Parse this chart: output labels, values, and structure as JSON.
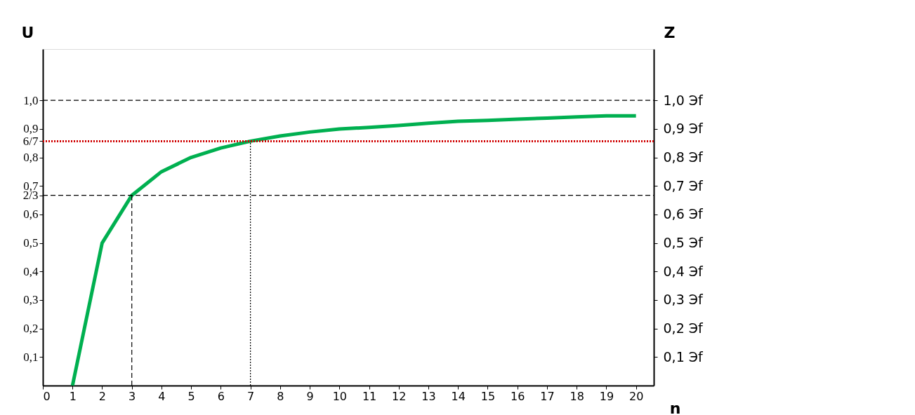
{
  "chart_data": {
    "type": "line",
    "xlabel": "n",
    "ylabel": "U",
    "y2label": "Z",
    "x": [
      1,
      2,
      3,
      4,
      5,
      6,
      7,
      8,
      9,
      10,
      11,
      12,
      13,
      14,
      15,
      16,
      17,
      18,
      19,
      20
    ],
    "series": [
      {
        "color": "#00b050",
        "values": [
          0,
          0.5,
          0.667,
          0.75,
          0.8,
          0.833,
          0.857,
          0.875,
          0.889,
          0.9,
          0.905,
          0.912,
          0.92,
          0.927,
          0.93,
          0.934,
          0.938,
          0.942,
          0.946,
          0.946
        ]
      }
    ],
    "xlim": [
      0,
      20.6
    ],
    "ylim": [
      0,
      1.18
    ],
    "y2lim": [
      0,
      1.18
    ],
    "xticks": [
      0,
      1,
      2,
      3,
      4,
      5,
      6,
      7,
      8,
      9,
      10,
      11,
      12,
      13,
      14,
      15,
      16,
      17,
      18,
      19,
      20
    ],
    "yticks": [
      {
        "value": 0.1,
        "label": "0,1"
      },
      {
        "value": 0.2,
        "label": "0,2"
      },
      {
        "value": 0.3,
        "label": "0,3"
      },
      {
        "value": 0.4,
        "label": "0,4"
      },
      {
        "value": 0.5,
        "label": "0,5"
      },
      {
        "value": 0.6,
        "label": "0,6"
      },
      {
        "value": 0.667,
        "label": "2/3"
      },
      {
        "value": 0.7,
        "label": "0,7"
      },
      {
        "value": 0.8,
        "label": "0,8"
      },
      {
        "value": 0.857,
        "label": "6/7"
      },
      {
        "value": 0.9,
        "label": "0,9"
      },
      {
        "value": 1.0,
        "label": "1,0"
      }
    ],
    "y2ticks": [
      {
        "value": 0.1,
        "label": "0,1 Эf"
      },
      {
        "value": 0.2,
        "label": "0,2 Эf"
      },
      {
        "value": 0.3,
        "label": "0,3 Эf"
      },
      {
        "value": 0.4,
        "label": "0,4 Эf"
      },
      {
        "value": 0.5,
        "label": "0,5 Эf"
      },
      {
        "value": 0.6,
        "label": "0,6 Эf"
      },
      {
        "value": 0.7,
        "label": "0,7 Эf"
      },
      {
        "value": 0.8,
        "label": "0,8 Эf"
      },
      {
        "value": 0.9,
        "label": "0,9 Эf"
      },
      {
        "value": 1.0,
        "label": "1,0 Эf"
      }
    ],
    "ref_lines": [
      {
        "axis": "y",
        "value": 1.0,
        "color": "#000000",
        "line_style": "dashed"
      },
      {
        "axis": "y",
        "value": 0.857,
        "color": "#d00000",
        "line_style": "dotted"
      },
      {
        "axis": "y",
        "value": 0.667,
        "color": "#000000",
        "line_style": "dashed"
      },
      {
        "axis": "x",
        "value": 3,
        "color": "#000000",
        "line_style": "dashed"
      },
      {
        "axis": "x",
        "value": 7,
        "color": "#000000",
        "line_style": "dotted"
      }
    ],
    "grid": false,
    "marker": "none",
    "line_style": "solid"
  }
}
